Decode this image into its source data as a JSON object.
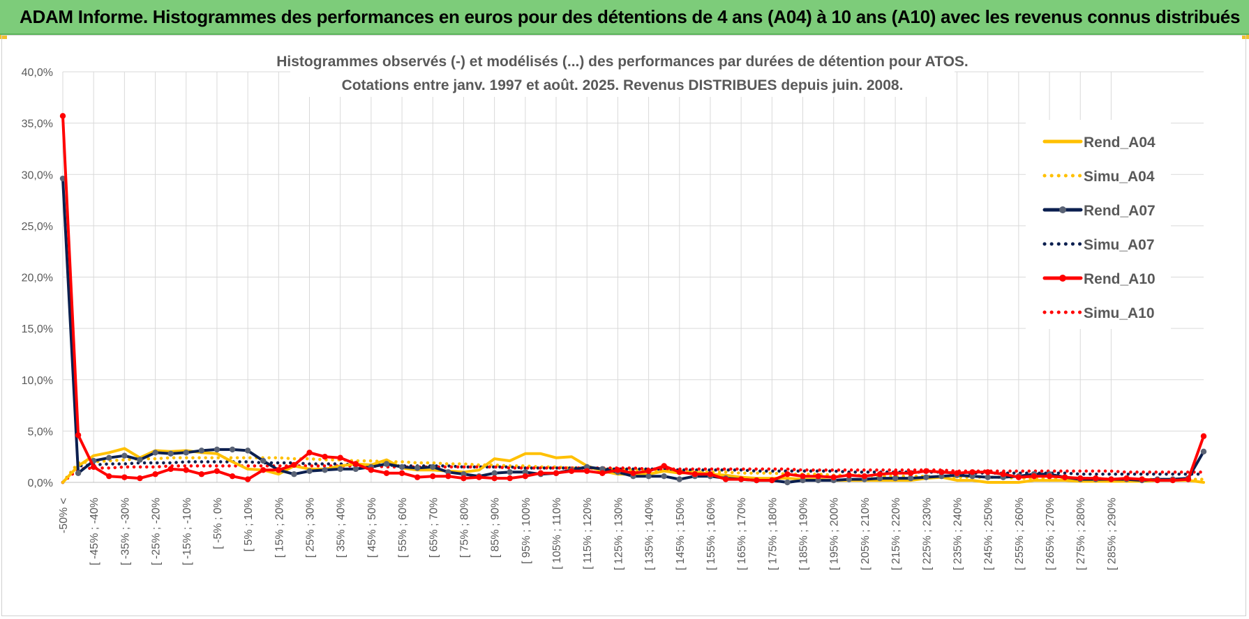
{
  "banner": {
    "title": "ADAM Informe. Histogrammes des performances en euros pour des détentions de 4 ans (A04) à 10 ans (A10) avec les revenus connus distribués"
  },
  "colors": {
    "banner_bg": "#7dcc7a",
    "a04": "#ffc000",
    "a07": "#0b1f4f",
    "a10": "#ff0000"
  },
  "chart_data": {
    "type": "line",
    "title": "Histogrammes observés (-) et modélisés (...) des performances par durées de détention pour ATOS.",
    "subtitle": "Cotations entre janv. 1997 et août. 2025. Revenus DISTRIBUES depuis juin. 2008.",
    "ylim": [
      0,
      40
    ],
    "y_ticks": [
      "0,0%",
      "5,0%",
      "10,0%",
      "15,0%",
      "20,0%",
      "25,0%",
      "30,0%",
      "35,0%",
      "40,0%"
    ],
    "legend_position": "right",
    "grid": true,
    "x_tick_labels": [
      "-50% <",
      "[ -45% ; -40%",
      "[ -35% ; -30%",
      "[ -25% ; -20%",
      "[ -15% ; -10%",
      "[ -5% ; 0%",
      "[ 5% ; 10%",
      "[ 15% ; 20%",
      "[ 25% ; 30%",
      "[ 35% ; 40%",
      "[ 45% ; 50%",
      "[ 55% ; 60%",
      "[ 65% ; 70%",
      "[ 75% ; 80%",
      "[ 85% ; 90%",
      "[ 95% ; 100%",
      "[ 105% ; 110%",
      "[ 115% ; 120%",
      "[ 125% ; 130%",
      "[ 135% ; 140%",
      "[ 145% ; 150%",
      "[ 155% ; 160%",
      "[ 165% ; 170%",
      "[ 175% ; 180%",
      "[ 185% ; 190%",
      "[ 195% ; 200%",
      "[ 205% ; 210%",
      "[ 215% ; 220%",
      "[ 225% ; 230%",
      "[ 235% ; 240%",
      "[ 245% ; 250%",
      "[ 255% ; 260%",
      "[ 265% ; 270%",
      "[ 275% ; 280%",
      "[ 285% ; 290%"
    ],
    "x_tick_every": 2,
    "series": [
      {
        "name": "Rend_A04",
        "style": "solid",
        "markers": false,
        "color": "#ffc000",
        "values": [
          0.0,
          1.6,
          2.6,
          2.9,
          3.3,
          2.4,
          3.1,
          3.0,
          3.1,
          2.9,
          2.8,
          2.0,
          1.3,
          1.2,
          0.8,
          1.6,
          1.3,
          1.3,
          1.6,
          1.8,
          1.7,
          2.2,
          1.4,
          1.2,
          1.2,
          1.1,
          1.0,
          1.2,
          2.3,
          2.1,
          2.8,
          2.8,
          2.4,
          2.5,
          1.6,
          1.1,
          0.8,
          0.8,
          0.8,
          1.1,
          0.9,
          1.0,
          0.8,
          0.7,
          0.5,
          0.4,
          0.4,
          0.4,
          0.3,
          0.3,
          0.2,
          0.2,
          0.2,
          0.2,
          0.2,
          0.2,
          0.4,
          0.5,
          0.2,
          0.2,
          0.0,
          0.0,
          0.0,
          0.2,
          0.2,
          0.2,
          0.1,
          0.1,
          0.1,
          0.1,
          0.1,
          0.2,
          0.2,
          0.2,
          0.0
        ]
      },
      {
        "name": "Simu_A04",
        "style": "dotted",
        "markers": false,
        "color": "#ffc000",
        "values": [
          0.0,
          1.9,
          2.0,
          2.1,
          2.2,
          2.3,
          2.3,
          2.4,
          2.4,
          2.4,
          2.4,
          2.4,
          2.4,
          2.4,
          2.4,
          2.3,
          2.3,
          2.2,
          2.2,
          2.1,
          2.1,
          2.0,
          2.0,
          1.9,
          1.9,
          1.8,
          1.8,
          1.7,
          1.7,
          1.6,
          1.6,
          1.5,
          1.5,
          1.4,
          1.4,
          1.3,
          1.3,
          1.2,
          1.2,
          1.1,
          1.1,
          1.0,
          1.0,
          1.0,
          0.9,
          0.9,
          0.9,
          0.8,
          0.8,
          0.8,
          0.7,
          0.7,
          0.7,
          0.6,
          0.6,
          0.6,
          0.6,
          0.5,
          0.5,
          0.5,
          0.5,
          0.5,
          0.4,
          0.4,
          0.4,
          0.4,
          0.4,
          0.4,
          0.3,
          0.3,
          0.3,
          0.3,
          0.3,
          0.3,
          0.3
        ]
      },
      {
        "name": "Rend_A07",
        "style": "solid",
        "markers": true,
        "color": "#0b1f4f",
        "values": [
          29.6,
          0.9,
          2.1,
          2.4,
          2.6,
          2.2,
          2.9,
          2.8,
          2.9,
          3.1,
          3.2,
          3.2,
          3.1,
          2.1,
          1.2,
          0.8,
          1.1,
          1.2,
          1.3,
          1.3,
          1.5,
          1.8,
          1.5,
          1.4,
          1.5,
          1.0,
          0.8,
          0.6,
          0.9,
          1.0,
          1.0,
          0.8,
          0.9,
          1.2,
          1.5,
          1.3,
          1.0,
          0.6,
          0.6,
          0.6,
          0.3,
          0.6,
          0.6,
          0.4,
          0.3,
          0.2,
          0.2,
          0.0,
          0.2,
          0.2,
          0.2,
          0.3,
          0.3,
          0.4,
          0.4,
          0.4,
          0.5,
          0.6,
          0.7,
          0.6,
          0.5,
          0.5,
          0.6,
          0.8,
          0.8,
          0.5,
          0.3,
          0.3,
          0.3,
          0.3,
          0.2,
          0.3,
          0.3,
          0.4,
          3.0
        ]
      },
      {
        "name": "Simu_A07",
        "style": "dotted",
        "markers": false,
        "color": "#0b1f4f",
        "values": [
          0.0,
          1.6,
          1.7,
          1.8,
          1.8,
          1.9,
          1.9,
          1.9,
          2.0,
          2.0,
          2.0,
          2.0,
          2.0,
          1.9,
          1.9,
          1.9,
          1.8,
          1.8,
          1.8,
          1.7,
          1.7,
          1.7,
          1.6,
          1.6,
          1.6,
          1.6,
          1.5,
          1.5,
          1.5,
          1.5,
          1.4,
          1.4,
          1.4,
          1.4,
          1.4,
          1.3,
          1.3,
          1.3,
          1.3,
          1.3,
          1.2,
          1.2,
          1.2,
          1.2,
          1.2,
          1.1,
          1.1,
          1.1,
          1.1,
          1.1,
          1.1,
          1.0,
          1.0,
          1.0,
          1.0,
          1.0,
          1.0,
          1.0,
          0.9,
          0.9,
          0.9,
          0.9,
          0.9,
          0.9,
          0.9,
          0.9,
          0.8,
          0.8,
          0.8,
          0.8,
          0.8,
          0.8,
          0.8,
          0.8,
          0.8
        ]
      },
      {
        "name": "Rend_A10",
        "style": "solid",
        "markers": true,
        "color": "#ff0000",
        "values": [
          35.7,
          4.6,
          1.5,
          0.6,
          0.5,
          0.4,
          0.8,
          1.3,
          1.2,
          0.8,
          1.1,
          0.6,
          0.3,
          1.2,
          1.2,
          1.7,
          2.9,
          2.5,
          2.4,
          1.8,
          1.2,
          0.9,
          0.9,
          0.5,
          0.6,
          0.6,
          0.4,
          0.5,
          0.4,
          0.4,
          0.6,
          0.9,
          0.9,
          1.1,
          1.1,
          0.9,
          1.2,
          0.9,
          1.1,
          1.6,
          1.0,
          0.8,
          0.8,
          0.3,
          0.3,
          0.2,
          0.2,
          0.8,
          0.6,
          0.6,
          0.5,
          0.7,
          0.6,
          0.8,
          0.9,
          0.9,
          1.1,
          1.0,
          0.9,
          1.0,
          1.0,
          0.8,
          0.5,
          0.6,
          0.6,
          0.5,
          0.4,
          0.4,
          0.3,
          0.4,
          0.3,
          0.2,
          0.2,
          0.3,
          4.5
        ]
      },
      {
        "name": "Simu_A10",
        "style": "dotted",
        "markers": false,
        "color": "#ff0000",
        "values": [
          0.0,
          1.3,
          1.4,
          1.4,
          1.5,
          1.5,
          1.5,
          1.6,
          1.6,
          1.6,
          1.6,
          1.6,
          1.6,
          1.6,
          1.6,
          1.6,
          1.6,
          1.6,
          1.6,
          1.6,
          1.6,
          1.5,
          1.5,
          1.5,
          1.5,
          1.5,
          1.5,
          1.5,
          1.5,
          1.4,
          1.4,
          1.4,
          1.4,
          1.4,
          1.4,
          1.4,
          1.4,
          1.4,
          1.3,
          1.3,
          1.3,
          1.3,
          1.3,
          1.3,
          1.3,
          1.3,
          1.3,
          1.3,
          1.2,
          1.2,
          1.2,
          1.2,
          1.2,
          1.2,
          1.2,
          1.2,
          1.2,
          1.2,
          1.1,
          1.1,
          1.1,
          1.1,
          1.1,
          1.1,
          1.1,
          1.1,
          1.1,
          1.1,
          1.1,
          1.0,
          1.0,
          1.0,
          1.0,
          1.0,
          1.0
        ]
      }
    ]
  }
}
